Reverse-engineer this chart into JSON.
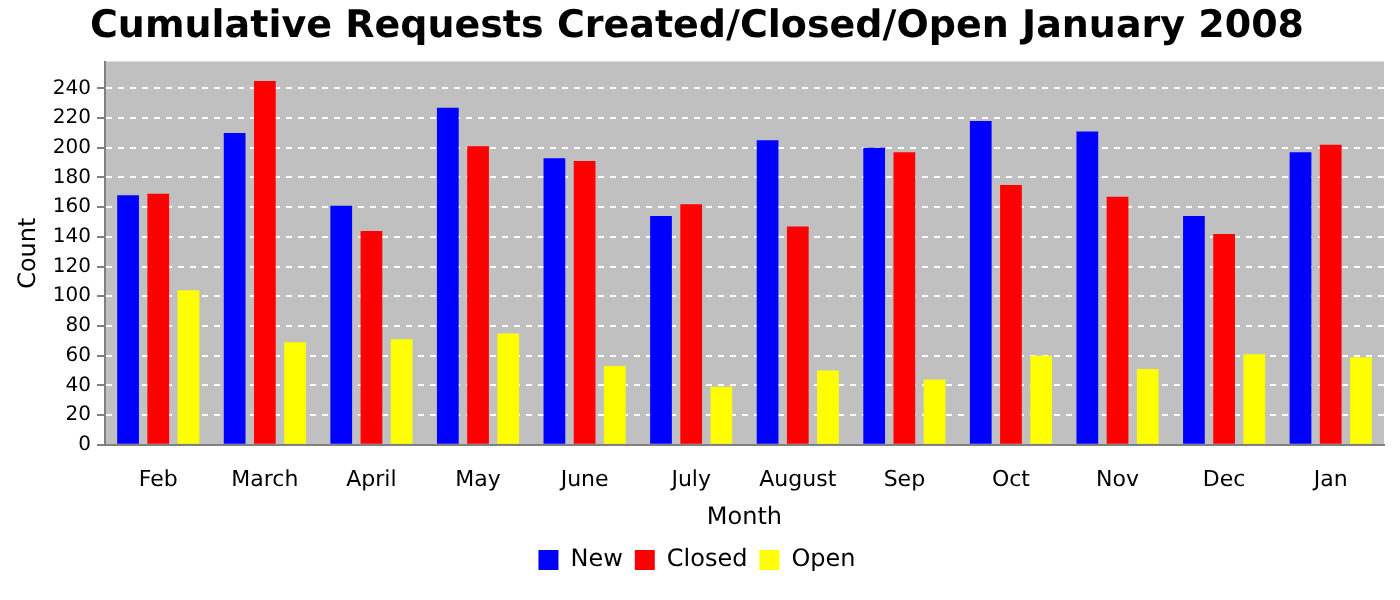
{
  "chart_data": {
    "type": "bar",
    "title": "Cumulative Requests Created/Closed/Open January 2008",
    "xlabel": "Month",
    "ylabel": "Count",
    "categories": [
      "Feb",
      "March",
      "April",
      "May",
      "June",
      "July",
      "August",
      "Sep",
      "Oct",
      "Nov",
      "Dec",
      "Jan"
    ],
    "series": [
      {
        "name": "New",
        "color": "#0000ff",
        "values": [
          168,
          210,
          161,
          227,
          193,
          154,
          205,
          200,
          218,
          211,
          154,
          197
        ]
      },
      {
        "name": "Closed",
        "color": "#ff0000",
        "values": [
          169,
          245,
          144,
          201,
          191,
          162,
          147,
          197,
          175,
          167,
          142,
          202
        ]
      },
      {
        "name": "Open",
        "color": "#ffff00",
        "values": [
          104,
          69,
          71,
          75,
          53,
          39,
          50,
          44,
          60,
          51,
          61,
          59
        ]
      }
    ],
    "ylim": [
      0,
      258
    ],
    "yticks": [
      0,
      20,
      40,
      60,
      80,
      100,
      120,
      140,
      160,
      180,
      200,
      220,
      240
    ],
    "grid": "y",
    "legend": "bottom"
  }
}
